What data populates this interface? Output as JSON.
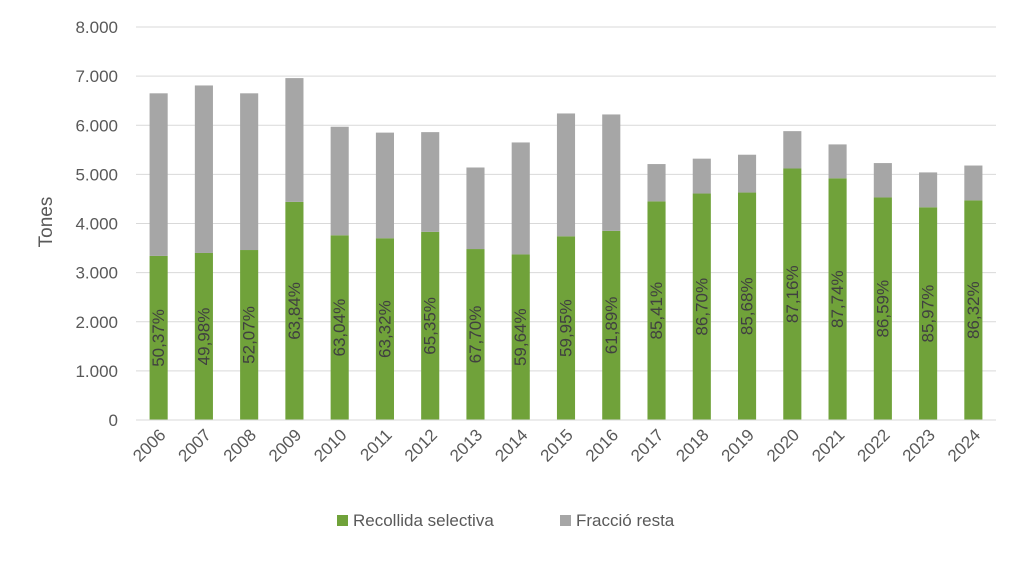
{
  "chart_data": {
    "type": "bar",
    "stacked": true,
    "title": "",
    "xlabel": "",
    "ylabel": "Tones",
    "ylim": [
      0,
      8000
    ],
    "yticks": [
      0,
      1000,
      2000,
      3000,
      4000,
      5000,
      6000,
      7000,
      8000
    ],
    "ytick_labels": [
      "0",
      "1.000",
      "2.000",
      "3.000",
      "4.000",
      "5.000",
      "6.000",
      "7.000",
      "8.000"
    ],
    "grid": "horizontal",
    "legend_position": "bottom",
    "categories": [
      "2006",
      "2007",
      "2008",
      "2009",
      "2010",
      "2011",
      "2012",
      "2013",
      "2014",
      "2015",
      "2016",
      "2017",
      "2018",
      "2019",
      "2020",
      "2021",
      "2022",
      "2023",
      "2024"
    ],
    "series": [
      {
        "name": "Recollida selectiva",
        "color": "#70a23a",
        "values": [
          3340,
          3400,
          3460,
          4440,
          3760,
          3700,
          3830,
          3480,
          3370,
          3740,
          3850,
          4450,
          4610,
          4630,
          5120,
          4920,
          4530,
          4330,
          4470
        ]
      },
      {
        "name": "Fracció resta",
        "color": "#a6a6a6",
        "values": [
          3310,
          3410,
          3190,
          2520,
          2210,
          2150,
          2030,
          1660,
          2280,
          2500,
          2370,
          760,
          710,
          770,
          760,
          690,
          700,
          710,
          710
        ]
      }
    ],
    "data_labels": [
      "50,37%",
      "49,98%",
      "52,07%",
      "63,84%",
      "63,04%",
      "63,32%",
      "65,35%",
      "67,70%",
      "59,64%",
      "59,95%",
      "61,89%",
      "85,41%",
      "86,70%",
      "85,68%",
      "87,16%",
      "87,74%",
      "86,59%",
      "85,97%",
      "86,32%"
    ]
  }
}
